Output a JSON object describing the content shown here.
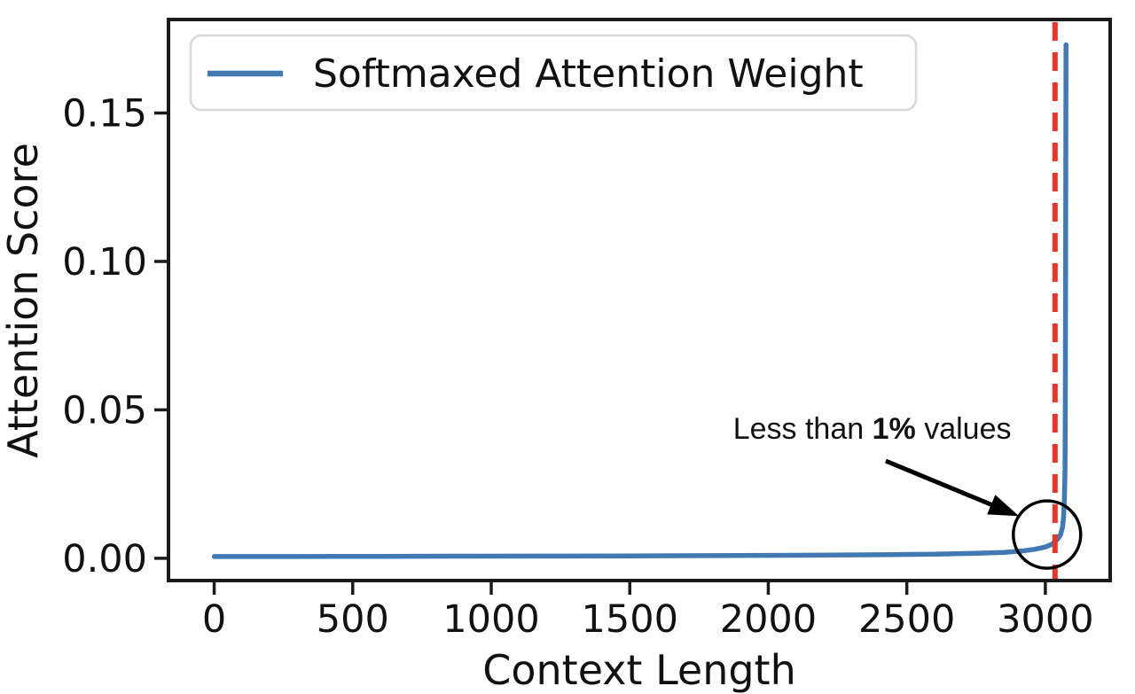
{
  "chart_data": {
    "type": "line",
    "title": "",
    "xlabel": "Context Length",
    "ylabel": "Attention Score",
    "xlim": [
      -165,
      3234
    ],
    "ylim": [
      -0.0075,
      0.1815
    ],
    "xticks": [
      0,
      500,
      1000,
      1500,
      2000,
      2500,
      3000
    ],
    "xtick_labels": [
      "0",
      "500",
      "1000",
      "1500",
      "2000",
      "2500",
      "3000"
    ],
    "yticks": [
      0,
      0.05,
      0.1,
      0.15
    ],
    "ytick_labels": [
      "0.00",
      "0.05",
      "0.10",
      "0.15"
    ],
    "grid": false,
    "legend": {
      "position": "upper-left",
      "entries": [
        {
          "label": "Softmaxed Attention Weight",
          "color": "#4379b2"
        }
      ]
    },
    "series": [
      {
        "name": "Softmaxed Attention Weight",
        "color": "#4379b2",
        "points": [
          [
            0,
            0.0006
          ],
          [
            300,
            0.0006
          ],
          [
            600,
            0.00065
          ],
          [
            900,
            0.0007
          ],
          [
            1200,
            0.00075
          ],
          [
            1500,
            0.0008
          ],
          [
            1800,
            0.0009
          ],
          [
            2100,
            0.001
          ],
          [
            2400,
            0.0012
          ],
          [
            2600,
            0.0014
          ],
          [
            2750,
            0.0017
          ],
          [
            2850,
            0.002
          ],
          [
            2920,
            0.0025
          ],
          [
            2960,
            0.003
          ],
          [
            3000,
            0.0038
          ],
          [
            3025,
            0.0048
          ],
          [
            3045,
            0.0065
          ],
          [
            3055,
            0.008
          ],
          [
            3062,
            0.0105
          ],
          [
            3066,
            0.014
          ],
          [
            3069,
            0.02
          ],
          [
            3071,
            0.03
          ],
          [
            3072,
            0.05
          ],
          [
            3073,
            0.09
          ],
          [
            3074,
            0.14
          ],
          [
            3074.5,
            0.173
          ]
        ]
      }
    ],
    "vline": {
      "x": 3035,
      "color": "#e5362b",
      "style": "dashed"
    },
    "annotations": {
      "label": {
        "prefix": "Less than ",
        "bold": "1%",
        "suffix": " values",
        "x": 2375,
        "y": 0.0438
      },
      "arrow": {
        "from_x": 2424,
        "from_y": 0.0328,
        "to_x": 2905,
        "to_y": 0.0142,
        "color": "#000000"
      },
      "circle": {
        "x": 3006,
        "y": 0.008,
        "radius_px": 38,
        "color": "#000000"
      }
    },
    "colors": {
      "axis": "#1a1a1a",
      "background": "#ffffff",
      "legend_border": "#d9d9d9"
    }
  }
}
